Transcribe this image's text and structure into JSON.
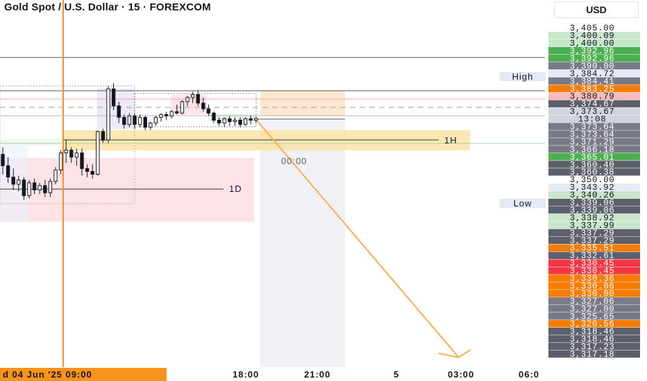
{
  "header": {
    "title": "Gold Spot / U.S. Dollar · 15 · FOREXCOM",
    "currency": "USD"
  },
  "chart_data": {
    "type": "candlestick",
    "title": "Gold Spot / U.S. Dollar · 15 · FOREXCOM",
    "ylim": [
      3317.18,
      3405.0
    ],
    "price_scale": [
      {
        "label": "3,405.00",
        "value": 3405.0,
        "bg": "#ffffff",
        "fg": "#131722"
      },
      {
        "label": "3,400.09",
        "value": 3400.09,
        "bg": "#c8e6c9",
        "fg": "#131722"
      },
      {
        "label": "3,400.00",
        "value": 3400.0,
        "bg": "#c8e6c9",
        "fg": "#131722"
      },
      {
        "label": "3,392.96",
        "value": 3392.96,
        "bg": "#4caf50",
        "fg": "#ffffff"
      },
      {
        "label": "3,392.96",
        "value": 3392.96,
        "bg": "#4caf50",
        "fg": "#ffffff"
      },
      {
        "label": "3,390.00",
        "value": 3390.0,
        "bg": "#787b86",
        "fg": "#ffffff"
      },
      {
        "label": "3,384.72",
        "value": 3384.72,
        "bg": "#e3eaf5",
        "fg": "#131722"
      },
      {
        "label": "3,384.41",
        "value": 3384.41,
        "bg": "#787b86",
        "fg": "#ffffff"
      },
      {
        "label": "3,383.25",
        "value": 3383.25,
        "bg": "#f57c00",
        "fg": "#ffffff"
      },
      {
        "label": "3,380.79",
        "value": 3380.79,
        "bg": "#f8bbbb",
        "fg": "#131722"
      },
      {
        "label": "3,374.67",
        "value": 3374.67,
        "bg": "#5d606b",
        "fg": "#ffffff"
      },
      {
        "label": "3,373.67",
        "value": 3373.67,
        "bg": "#d1d4dc",
        "fg": "#131722"
      },
      {
        "label": "13:08",
        "value": 3373.0,
        "bg": "#d1d4dc",
        "fg": "#131722"
      },
      {
        "label": "3,373.64",
        "value": 3373.64,
        "bg": "#787b86",
        "fg": "#ffffff"
      },
      {
        "label": "3,373.64",
        "value": 3373.64,
        "bg": "#787b86",
        "fg": "#ffffff"
      },
      {
        "label": "3,371.29",
        "value": 3371.29,
        "bg": "#787b86",
        "fg": "#ffffff"
      },
      {
        "label": "3,366.18",
        "value": 3366.18,
        "bg": "#787b86",
        "fg": "#ffffff"
      },
      {
        "label": "3,365.01",
        "value": 3365.01,
        "bg": "#4caf50",
        "fg": "#ffffff"
      },
      {
        "label": "3,360.40",
        "value": 3360.4,
        "bg": "#5d606b",
        "fg": "#ffffff"
      },
      {
        "label": "3,360.38",
        "value": 3360.38,
        "bg": "#5d606b",
        "fg": "#ffffff"
      },
      {
        "label": "3,350.00",
        "value": 3350.0,
        "bg": "#ffffff",
        "fg": "#131722"
      },
      {
        "label": "3,343.92",
        "value": 3343.92,
        "bg": "#e3eaf5",
        "fg": "#131722"
      },
      {
        "label": "3,340.26",
        "value": 3340.26,
        "bg": "#c8e6c9",
        "fg": "#131722"
      },
      {
        "label": "3,339.06",
        "value": 3339.06,
        "bg": "#5d606b",
        "fg": "#ffffff"
      },
      {
        "label": "3,339.06",
        "value": 3339.06,
        "bg": "#5d606b",
        "fg": "#ffffff"
      },
      {
        "label": "3,338.92",
        "value": 3338.92,
        "bg": "#c8e6c9",
        "fg": "#131722"
      },
      {
        "label": "3,337.99",
        "value": 3337.99,
        "bg": "#c8e6c9",
        "fg": "#131722"
      },
      {
        "label": "3,337.29",
        "value": 3337.29,
        "bg": "#5d606b",
        "fg": "#ffffff"
      },
      {
        "label": "3,337.29",
        "value": 3337.29,
        "bg": "#5d606b",
        "fg": "#ffffff"
      },
      {
        "label": "3,335.51",
        "value": 3335.51,
        "bg": "#f57c00",
        "fg": "#ffffff"
      },
      {
        "label": "3,332.61",
        "value": 3332.61,
        "bg": "#5d606b",
        "fg": "#ffffff"
      },
      {
        "label": "3,330.45",
        "value": 3330.45,
        "bg": "#f23645",
        "fg": "#ffffff"
      },
      {
        "label": "3,330.45",
        "value": 3330.45,
        "bg": "#f23645",
        "fg": "#ffffff"
      },
      {
        "label": "3,330.36",
        "value": 3330.36,
        "bg": "#f57c00",
        "fg": "#ffffff"
      },
      {
        "label": "3,330.06",
        "value": 3330.06,
        "bg": "#f57c00",
        "fg": "#ffffff"
      },
      {
        "label": "3,330.00",
        "value": 3330.0,
        "bg": "#f57c00",
        "fg": "#ffffff"
      },
      {
        "label": "3,327.06",
        "value": 3327.06,
        "bg": "#787b86",
        "fg": "#ffffff"
      },
      {
        "label": "3,327.00",
        "value": 3327.0,
        "bg": "#787b86",
        "fg": "#ffffff"
      },
      {
        "label": "3,325.65",
        "value": 3325.65,
        "bg": "#787b86",
        "fg": "#ffffff"
      },
      {
        "label": "3,320.56",
        "value": 3320.56,
        "bg": "#f57c00",
        "fg": "#ffffff"
      },
      {
        "label": "3,318.46",
        "value": 3318.46,
        "bg": "#5d606b",
        "fg": "#ffffff"
      },
      {
        "label": "3,318.46",
        "value": 3318.46,
        "bg": "#5d606b",
        "fg": "#ffffff"
      },
      {
        "label": "3,317.23",
        "value": 3317.23,
        "bg": "#5d606b",
        "fg": "#ffffff"
      },
      {
        "label": "3,317.18",
        "value": 3317.18,
        "bg": "#5d606b",
        "fg": "#ffffff"
      }
    ],
    "scale_markers": [
      {
        "label": "High",
        "value": 3384.72
      },
      {
        "label": "Low",
        "value": 3343.92
      }
    ],
    "time_axis": [
      {
        "label": "d 04 Jun '25   09:00",
        "highlight": true
      },
      {
        "label": "18:00",
        "highlight": false
      },
      {
        "label": "21:00",
        "highlight": false
      },
      {
        "label": "5",
        "highlight": false
      },
      {
        "label": "03:00",
        "highlight": false
      },
      {
        "label": "06:0",
        "highlight": false
      }
    ],
    "annotations": [
      {
        "label": "1H",
        "value": 3367.5
      },
      {
        "label": "1D",
        "value": 3349.0
      },
      {
        "label": "00:00",
        "value": 3363.2
      }
    ],
    "candles": [
      {
        "o": 3361.0,
        "h": 3363.5,
        "l": 3354.0,
        "c": 3357.0
      },
      {
        "o": 3357.0,
        "h": 3360.0,
        "l": 3351.0,
        "c": 3353.0
      },
      {
        "o": 3353.0,
        "h": 3356.0,
        "l": 3348.5,
        "c": 3350.5
      },
      {
        "o": 3350.5,
        "h": 3353.5,
        "l": 3348.0,
        "c": 3352.0
      },
      {
        "o": 3352.0,
        "h": 3353.0,
        "l": 3345.0,
        "c": 3346.5
      },
      {
        "o": 3346.5,
        "h": 3352.0,
        "l": 3345.5,
        "c": 3351.0
      },
      {
        "o": 3351.0,
        "h": 3352.5,
        "l": 3347.0,
        "c": 3348.5
      },
      {
        "o": 3348.5,
        "h": 3351.0,
        "l": 3347.0,
        "c": 3350.0
      },
      {
        "o": 3350.0,
        "h": 3352.0,
        "l": 3346.0,
        "c": 3347.5
      },
      {
        "o": 3347.5,
        "h": 3352.5,
        "l": 3346.0,
        "c": 3351.5
      },
      {
        "o": 3351.5,
        "h": 3356.5,
        "l": 3350.5,
        "c": 3355.5
      },
      {
        "o": 3355.5,
        "h": 3362.5,
        "l": 3354.0,
        "c": 3361.5
      },
      {
        "o": 3361.5,
        "h": 3366.0,
        "l": 3358.0,
        "c": 3362.5
      },
      {
        "o": 3362.5,
        "h": 3363.5,
        "l": 3358.0,
        "c": 3360.0
      },
      {
        "o": 3360.0,
        "h": 3363.0,
        "l": 3357.0,
        "c": 3361.5
      },
      {
        "o": 3361.5,
        "h": 3363.0,
        "l": 3353.5,
        "c": 3356.0
      },
      {
        "o": 3356.0,
        "h": 3357.5,
        "l": 3353.0,
        "c": 3355.0
      },
      {
        "o": 3355.0,
        "h": 3357.5,
        "l": 3352.5,
        "c": 3354.0
      },
      {
        "o": 3354.0,
        "h": 3369.5,
        "l": 3353.5,
        "c": 3369.0
      },
      {
        "o": 3369.0,
        "h": 3370.0,
        "l": 3365.0,
        "c": 3366.0
      },
      {
        "o": 3366.0,
        "h": 3385.0,
        "l": 3365.0,
        "c": 3384.0
      },
      {
        "o": 3384.0,
        "h": 3386.0,
        "l": 3376.5,
        "c": 3378.0
      },
      {
        "o": 3378.0,
        "h": 3379.5,
        "l": 3372.0,
        "c": 3374.0
      },
      {
        "o": 3374.0,
        "h": 3375.0,
        "l": 3370.0,
        "c": 3371.5
      },
      {
        "o": 3371.5,
        "h": 3375.5,
        "l": 3370.5,
        "c": 3374.5
      },
      {
        "o": 3374.5,
        "h": 3375.5,
        "l": 3370.0,
        "c": 3371.5
      },
      {
        "o": 3371.5,
        "h": 3375.0,
        "l": 3370.5,
        "c": 3374.0
      },
      {
        "o": 3374.0,
        "h": 3374.5,
        "l": 3369.5,
        "c": 3370.5
      },
      {
        "o": 3370.5,
        "h": 3372.5,
        "l": 3369.5,
        "c": 3372.0
      },
      {
        "o": 3372.0,
        "h": 3374.5,
        "l": 3371.0,
        "c": 3374.0
      },
      {
        "o": 3374.0,
        "h": 3375.5,
        "l": 3372.5,
        "c": 3375.0
      },
      {
        "o": 3375.0,
        "h": 3376.0,
        "l": 3373.0,
        "c": 3374.5
      },
      {
        "o": 3374.5,
        "h": 3376.5,
        "l": 3373.5,
        "c": 3376.0
      },
      {
        "o": 3376.0,
        "h": 3378.5,
        "l": 3375.0,
        "c": 3375.5
      },
      {
        "o": 3375.5,
        "h": 3380.0,
        "l": 3375.0,
        "c": 3379.5
      },
      {
        "o": 3379.5,
        "h": 3381.5,
        "l": 3378.0,
        "c": 3381.0
      },
      {
        "o": 3381.0,
        "h": 3383.0,
        "l": 3379.0,
        "c": 3382.0
      },
      {
        "o": 3382.0,
        "h": 3383.5,
        "l": 3378.0,
        "c": 3379.0
      },
      {
        "o": 3379.0,
        "h": 3381.0,
        "l": 3376.0,
        "c": 3377.0
      },
      {
        "o": 3377.0,
        "h": 3378.5,
        "l": 3374.5,
        "c": 3375.5
      },
      {
        "o": 3375.5,
        "h": 3376.0,
        "l": 3372.0,
        "c": 3373.0
      },
      {
        "o": 3373.0,
        "h": 3374.0,
        "l": 3371.0,
        "c": 3372.0
      },
      {
        "o": 3372.0,
        "h": 3374.0,
        "l": 3370.5,
        "c": 3373.5
      },
      {
        "o": 3373.5,
        "h": 3374.5,
        "l": 3371.0,
        "c": 3372.5
      },
      {
        "o": 3372.5,
        "h": 3374.0,
        "l": 3371.0,
        "c": 3373.0
      },
      {
        "o": 3373.0,
        "h": 3374.0,
        "l": 3370.5,
        "c": 3371.5
      },
      {
        "o": 3371.5,
        "h": 3374.0,
        "l": 3371.0,
        "c": 3373.5
      },
      {
        "o": 3373.5,
        "h": 3374.5,
        "l": 3371.5,
        "c": 3373.0
      },
      {
        "o": 3373.0,
        "h": 3374.0,
        "l": 3372.0,
        "c": 3373.6
      }
    ],
    "colors": {
      "orange": "#f7931a",
      "yellow_zone": "#f8d673",
      "red_zone": "#fbd3d7",
      "green_line": "#8bc34a",
      "red_line": "#f23645"
    }
  }
}
